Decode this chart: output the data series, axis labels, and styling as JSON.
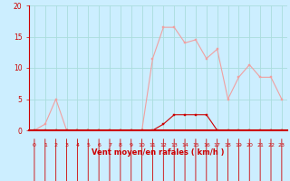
{
  "x": [
    0,
    1,
    2,
    3,
    4,
    5,
    6,
    7,
    8,
    9,
    10,
    11,
    12,
    13,
    14,
    15,
    16,
    17,
    18,
    19,
    20,
    21,
    22,
    23
  ],
  "rafales": [
    0,
    1,
    5,
    0,
    0,
    0,
    0,
    0,
    0,
    0,
    0,
    11.5,
    16.5,
    16.5,
    14,
    14.5,
    11.5,
    13,
    5,
    8.5,
    10.5,
    8.5,
    8.5,
    5
  ],
  "moyen": [
    0,
    0,
    0,
    0,
    0,
    0,
    0,
    0,
    0,
    0,
    0,
    0,
    1,
    2.5,
    2.5,
    2.5,
    2.5,
    0,
    0,
    0,
    0,
    0,
    0,
    0
  ],
  "line_color_rafales": "#f0a0a0",
  "line_color_moyen": "#cc0000",
  "marker_color_rafales": "#f0a0a0",
  "marker_color_moyen": "#cc0000",
  "bg_color": "#cceeff",
  "grid_color": "#aadddd",
  "axis_color": "#cc0000",
  "tick_label_color": "#cc0000",
  "xlabel": "Vent moyen/en rafales ( km/h )",
  "xlabel_color": "#cc0000",
  "ylim": [
    0,
    20
  ],
  "yticks": [
    0,
    5,
    10,
    15,
    20
  ],
  "xlim": [
    -0.5,
    23.5
  ],
  "arrow_color": "#cc0000"
}
